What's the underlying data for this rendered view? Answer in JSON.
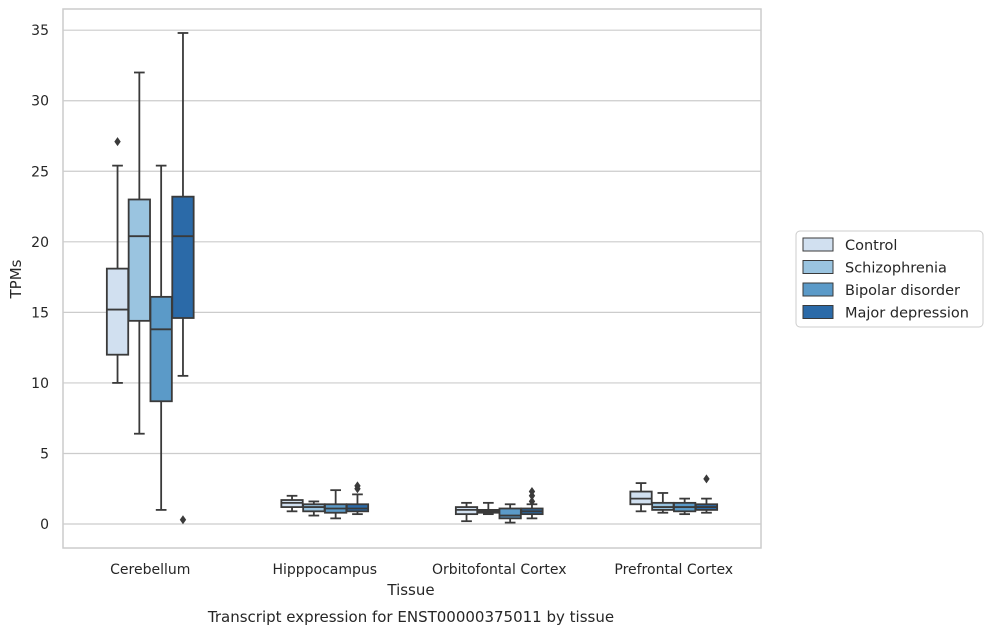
{
  "chart_data": {
    "type": "box",
    "title": "Transcript expression for ENST00000375011 by tissue",
    "xlabel": "Tissue",
    "ylabel": "TPMs",
    "ylim": [
      -1.7,
      36.5
    ],
    "yticks": [
      0,
      5,
      10,
      15,
      20,
      25,
      30,
      35
    ],
    "grid": "horizontal",
    "legend_position": "right",
    "categories": [
      "Cerebellum",
      "Hipppocampus",
      "Orbitofontal Cortex",
      "Prefrontal Cortex"
    ],
    "series": [
      {
        "name": "Control",
        "color": "#d1e0f0",
        "boxes": [
          {
            "whislo": 10.0,
            "q1": 12.0,
            "med": 15.2,
            "q3": 18.1,
            "whishi": 25.4,
            "fliers": [
              27.1
            ]
          },
          {
            "whislo": 0.9,
            "q1": 1.2,
            "med": 1.5,
            "q3": 1.7,
            "whishi": 2.0,
            "fliers": []
          },
          {
            "whislo": 0.2,
            "q1": 0.7,
            "med": 1.0,
            "q3": 1.2,
            "whishi": 1.5,
            "fliers": []
          },
          {
            "whislo": 0.9,
            "q1": 1.4,
            "med": 1.8,
            "q3": 2.3,
            "whishi": 2.9,
            "fliers": []
          }
        ]
      },
      {
        "name": "Schizophrenia",
        "color": "#9ac4e0",
        "boxes": [
          {
            "whislo": 6.4,
            "q1": 14.4,
            "med": 20.4,
            "q3": 23.0,
            "whishi": 32.0,
            "fliers": []
          },
          {
            "whislo": 0.6,
            "q1": 0.9,
            "med": 1.2,
            "q3": 1.4,
            "whishi": 1.6,
            "fliers": []
          },
          {
            "whislo": 0.7,
            "q1": 0.8,
            "med": 0.9,
            "q3": 1.0,
            "whishi": 1.5,
            "fliers": []
          },
          {
            "whislo": 0.8,
            "q1": 1.0,
            "med": 1.2,
            "q3": 1.5,
            "whishi": 2.2,
            "fliers": []
          }
        ]
      },
      {
        "name": "Bipolar disorder",
        "color": "#5b9ac8",
        "boxes": [
          {
            "whislo": 1.0,
            "q1": 8.7,
            "med": 13.8,
            "q3": 16.1,
            "whishi": 25.4,
            "fliers": []
          },
          {
            "whislo": 0.4,
            "q1": 0.8,
            "med": 1.1,
            "q3": 1.4,
            "whishi": 2.4,
            "fliers": []
          },
          {
            "whislo": 0.1,
            "q1": 0.4,
            "med": 0.6,
            "q3": 1.1,
            "whishi": 1.4,
            "fliers": []
          },
          {
            "whislo": 0.7,
            "q1": 0.9,
            "med": 1.2,
            "q3": 1.5,
            "whishi": 1.8,
            "fliers": []
          }
        ]
      },
      {
        "name": "Major depression",
        "color": "#2b6aa8",
        "boxes": [
          {
            "whislo": 10.5,
            "q1": 14.6,
            "med": 20.4,
            "q3": 23.2,
            "whishi": 34.8,
            "fliers": [
              0.3
            ]
          },
          {
            "whislo": 0.7,
            "q1": 0.9,
            "med": 1.1,
            "q3": 1.4,
            "whishi": 2.1,
            "fliers": [
              2.5,
              2.7
            ]
          },
          {
            "whislo": 0.4,
            "q1": 0.7,
            "med": 0.9,
            "q3": 1.1,
            "whishi": 1.4,
            "fliers": [
              1.6,
              2.0,
              2.3
            ]
          },
          {
            "whislo": 0.8,
            "q1": 1.0,
            "med": 1.2,
            "q3": 1.4,
            "whishi": 1.8,
            "fliers": [
              3.2
            ]
          }
        ]
      }
    ]
  }
}
